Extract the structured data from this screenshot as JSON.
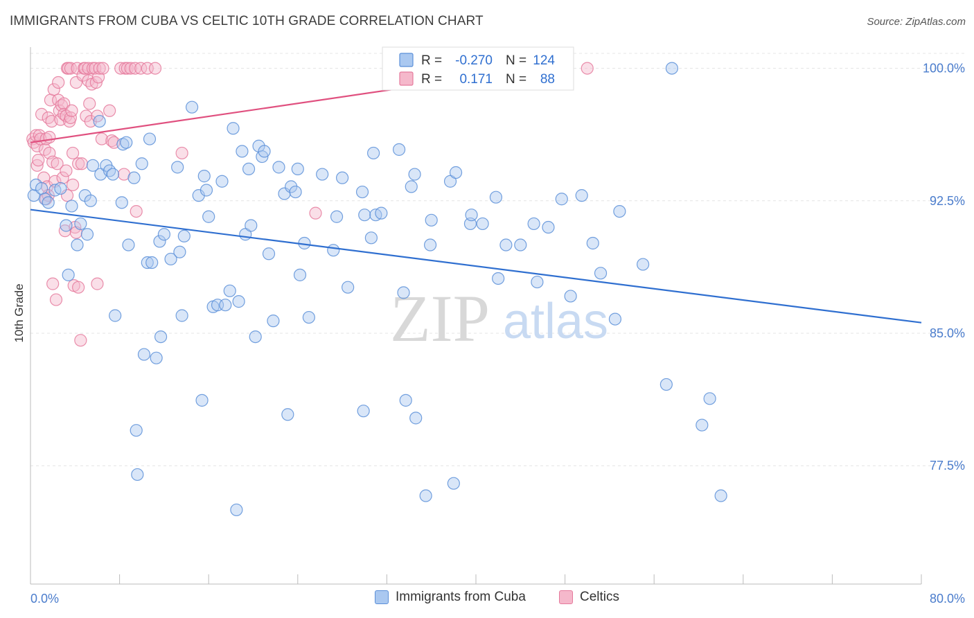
{
  "header": {
    "title": "IMMIGRANTS FROM CUBA VS CELTIC 10TH GRADE CORRELATION CHART",
    "source": "Source: ZipAtlas.com"
  },
  "watermark": {
    "zip": "ZIP",
    "atlas": "atlas"
  },
  "colors": {
    "cuba_fill": "#aac8f0",
    "cuba_stroke": "#5b8fd8",
    "cuba_line": "#2f6fd0",
    "celtic_fill": "#f5b8cb",
    "celtic_stroke": "#e57a9c",
    "celtic_line": "#e0507f",
    "axis_text": "#4a7ccc"
  },
  "legend_top": {
    "rows": [
      {
        "r_label": "R =",
        "r_value": "-0.270",
        "n_label": "N =",
        "n_value": "124"
      },
      {
        "r_label": "R =",
        "r_value": "0.171",
        "n_label": "N =",
        "n_value": "88"
      }
    ]
  },
  "legend_bottom": {
    "series1": "Immigrants from Cuba",
    "series2": "Celtics"
  },
  "chart_data": {
    "type": "scatter",
    "title": "IMMIGRANTS FROM CUBA VS CELTIC 10TH GRADE CORRELATION CHART",
    "ylabel": "10th Grade",
    "xlim": [
      0,
      80
    ],
    "ylim": [
      70.8,
      101.2
    ],
    "x_tick_labels": [
      "0.0%",
      "80.0%"
    ],
    "y_ticks": [
      77.5,
      85.0,
      92.5,
      100.0
    ],
    "y_tick_labels": [
      "77.5%",
      "85.0%",
      "92.5%",
      "100.0%"
    ],
    "grid": true,
    "legend_position": "top-center",
    "series": [
      {
        "name": "Immigrants from Cuba",
        "r": -0.27,
        "n": 124,
        "trend": {
          "x": [
            0,
            80
          ],
          "y": [
            92.0,
            85.6
          ]
        },
        "points": [
          [
            0.3,
            92.8
          ],
          [
            0.5,
            93.4
          ],
          [
            1.0,
            93.2
          ],
          [
            1.3,
            92.6
          ],
          [
            1.6,
            92.4
          ],
          [
            2.2,
            93.1
          ],
          [
            2.7,
            93.2
          ],
          [
            3.2,
            91.1
          ],
          [
            3.4,
            88.3
          ],
          [
            3.7,
            92.2
          ],
          [
            4.2,
            90.0
          ],
          [
            4.5,
            91.2
          ],
          [
            4.9,
            92.8
          ],
          [
            5.1,
            90.6
          ],
          [
            5.4,
            92.5
          ],
          [
            5.6,
            94.5
          ],
          [
            6.2,
            97.0
          ],
          [
            6.3,
            94.0
          ],
          [
            6.8,
            94.5
          ],
          [
            7.1,
            94.2
          ],
          [
            7.4,
            94.0
          ],
          [
            7.6,
            86.0
          ],
          [
            8.2,
            92.4
          ],
          [
            8.3,
            95.7
          ],
          [
            8.6,
            95.8
          ],
          [
            8.8,
            90.0
          ],
          [
            9.3,
            93.8
          ],
          [
            9.5,
            79.5
          ],
          [
            9.6,
            77.0
          ],
          [
            10.0,
            94.6
          ],
          [
            10.2,
            83.8
          ],
          [
            10.5,
            89.0
          ],
          [
            10.7,
            96.0
          ],
          [
            10.9,
            89.0
          ],
          [
            11.3,
            83.6
          ],
          [
            11.6,
            90.2
          ],
          [
            11.7,
            84.8
          ],
          [
            12.0,
            90.6
          ],
          [
            12.6,
            89.2
          ],
          [
            13.2,
            94.4
          ],
          [
            13.4,
            89.6
          ],
          [
            13.6,
            86.0
          ],
          [
            13.8,
            90.5
          ],
          [
            14.5,
            97.8
          ],
          [
            15.1,
            92.8
          ],
          [
            15.4,
            81.2
          ],
          [
            15.6,
            93.9
          ],
          [
            15.8,
            93.1
          ],
          [
            16.0,
            91.6
          ],
          [
            16.4,
            86.5
          ],
          [
            16.8,
            86.6
          ],
          [
            17.2,
            93.6
          ],
          [
            17.5,
            86.6
          ],
          [
            17.9,
            87.4
          ],
          [
            18.2,
            96.6
          ],
          [
            18.5,
            75.0
          ],
          [
            18.7,
            86.8
          ],
          [
            19.0,
            95.3
          ],
          [
            19.3,
            90.6
          ],
          [
            19.6,
            94.3
          ],
          [
            19.8,
            91.1
          ],
          [
            20.2,
            84.8
          ],
          [
            20.5,
            95.6
          ],
          [
            20.8,
            95.0
          ],
          [
            21.0,
            95.3
          ],
          [
            21.4,
            89.5
          ],
          [
            21.8,
            85.7
          ],
          [
            22.3,
            94.4
          ],
          [
            22.8,
            92.9
          ],
          [
            23.1,
            80.4
          ],
          [
            23.4,
            93.3
          ],
          [
            23.8,
            93.0
          ],
          [
            24.0,
            94.3
          ],
          [
            24.2,
            88.3
          ],
          [
            24.6,
            90.1
          ],
          [
            25.0,
            85.9
          ],
          [
            26.2,
            94.0
          ],
          [
            27.2,
            89.7
          ],
          [
            27.5,
            91.6
          ],
          [
            28.0,
            93.8
          ],
          [
            28.5,
            87.6
          ],
          [
            29.8,
            93.0
          ],
          [
            29.9,
            80.6
          ],
          [
            30.0,
            91.7
          ],
          [
            30.6,
            90.4
          ],
          [
            30.8,
            95.2
          ],
          [
            31.0,
            91.7
          ],
          [
            31.5,
            91.8
          ],
          [
            33.1,
            95.4
          ],
          [
            33.5,
            87.3
          ],
          [
            33.7,
            81.2
          ],
          [
            34.2,
            93.3
          ],
          [
            34.5,
            94.0
          ],
          [
            34.6,
            80.2
          ],
          [
            35.5,
            75.8
          ],
          [
            35.9,
            90.0
          ],
          [
            36.0,
            91.4
          ],
          [
            37.7,
            93.6
          ],
          [
            38.0,
            76.5
          ],
          [
            38.2,
            94.1
          ],
          [
            39.5,
            91.2
          ],
          [
            39.6,
            91.7
          ],
          [
            40.6,
            91.2
          ],
          [
            41.8,
            92.7
          ],
          [
            42.0,
            88.1
          ],
          [
            42.7,
            90.0
          ],
          [
            44.0,
            90.0
          ],
          [
            45.2,
            91.2
          ],
          [
            45.5,
            87.9
          ],
          [
            46.5,
            91.0
          ],
          [
            47.7,
            92.6
          ],
          [
            48.5,
            87.1
          ],
          [
            49.5,
            92.8
          ],
          [
            50.5,
            90.1
          ],
          [
            51.2,
            88.4
          ],
          [
            52.5,
            85.8
          ],
          [
            52.9,
            91.9
          ],
          [
            55.0,
            88.9
          ],
          [
            57.1,
            82.1
          ],
          [
            57.6,
            100.0
          ],
          [
            60.3,
            79.8
          ],
          [
            61.0,
            81.3
          ],
          [
            62.0,
            75.8
          ]
        ]
      },
      {
        "name": "Celtics",
        "r": 0.171,
        "n": 88,
        "trend": {
          "x": [
            0,
            45.5
          ],
          "y": [
            95.8,
            100.0
          ]
        },
        "points": [
          [
            0.2,
            96.0
          ],
          [
            0.3,
            95.8
          ],
          [
            0.5,
            96.2
          ],
          [
            0.6,
            95.6
          ],
          [
            0.6,
            94.5
          ],
          [
            0.7,
            94.8
          ],
          [
            0.8,
            96.2
          ],
          [
            0.9,
            96.0
          ],
          [
            1.0,
            97.4
          ],
          [
            1.2,
            93.8
          ],
          [
            1.3,
            95.4
          ],
          [
            1.4,
            96.0
          ],
          [
            1.4,
            92.6
          ],
          [
            1.5,
            93.3
          ],
          [
            1.6,
            92.8
          ],
          [
            1.6,
            97.2
          ],
          [
            1.7,
            96.1
          ],
          [
            1.7,
            95.2
          ],
          [
            1.8,
            98.2
          ],
          [
            1.9,
            97.0
          ],
          [
            2.0,
            94.7
          ],
          [
            2.0,
            87.8
          ],
          [
            2.1,
            98.8
          ],
          [
            2.2,
            93.6
          ],
          [
            2.3,
            86.9
          ],
          [
            2.4,
            94.6
          ],
          [
            2.5,
            99.2
          ],
          [
            2.5,
            98.2
          ],
          [
            2.6,
            97.6
          ],
          [
            2.7,
            97.1
          ],
          [
            2.8,
            97.9
          ],
          [
            2.9,
            93.8
          ],
          [
            3.0,
            98.0
          ],
          [
            3.0,
            97.4
          ],
          [
            3.1,
            90.8
          ],
          [
            3.2,
            97.3
          ],
          [
            3.2,
            94.2
          ],
          [
            3.3,
            92.8
          ],
          [
            3.3,
            100.0
          ],
          [
            3.4,
            100.0
          ],
          [
            3.5,
            97.0
          ],
          [
            3.6,
            100.0
          ],
          [
            3.6,
            97.2
          ],
          [
            3.7,
            97.6
          ],
          [
            3.8,
            95.2
          ],
          [
            3.8,
            93.4
          ],
          [
            3.9,
            87.7
          ],
          [
            4.0,
            91.0
          ],
          [
            4.1,
            90.7
          ],
          [
            4.1,
            99.2
          ],
          [
            4.2,
            100.0
          ],
          [
            4.3,
            94.6
          ],
          [
            4.3,
            87.6
          ],
          [
            4.5,
            84.6
          ],
          [
            4.6,
            94.6
          ],
          [
            4.7,
            99.6
          ],
          [
            4.8,
            100.0
          ],
          [
            4.9,
            100.0
          ],
          [
            5.0,
            97.3
          ],
          [
            5.2,
            100.0
          ],
          [
            5.2,
            99.3
          ],
          [
            5.3,
            98.0
          ],
          [
            5.4,
            97.0
          ],
          [
            5.5,
            99.1
          ],
          [
            5.6,
            100.0
          ],
          [
            5.8,
            100.0
          ],
          [
            5.9,
            99.2
          ],
          [
            6.0,
            97.3
          ],
          [
            6.0,
            87.8
          ],
          [
            6.1,
            99.5
          ],
          [
            6.2,
            100.0
          ],
          [
            6.4,
            96.0
          ],
          [
            6.5,
            100.0
          ],
          [
            7.1,
            97.6
          ],
          [
            7.3,
            95.9
          ],
          [
            7.5,
            95.8
          ],
          [
            8.1,
            100.0
          ],
          [
            8.4,
            94.0
          ],
          [
            8.5,
            100.0
          ],
          [
            8.7,
            100.0
          ],
          [
            9.0,
            100.0
          ],
          [
            9.4,
            100.0
          ],
          [
            9.5,
            91.9
          ],
          [
            9.9,
            100.0
          ],
          [
            10.5,
            100.0
          ],
          [
            11.2,
            100.0
          ],
          [
            13.6,
            95.2
          ],
          [
            25.6,
            91.8
          ],
          [
            50.0,
            100.0
          ]
        ]
      }
    ]
  }
}
